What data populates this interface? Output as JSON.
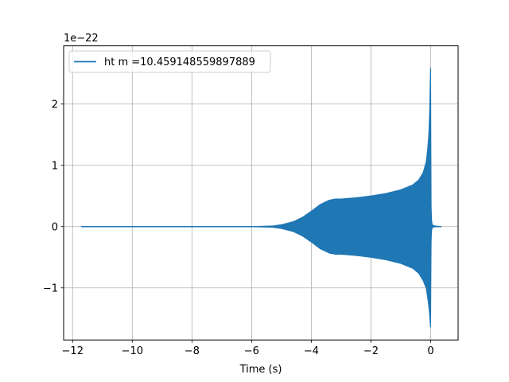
{
  "chart_data": {
    "type": "line",
    "title": "",
    "xlabel": "Time (s)",
    "ylabel": "",
    "y_scale_label": "1e−22",
    "xlim": [
      -12.3,
      0.92
    ],
    "ylim": [
      -1.85,
      2.95
    ],
    "x_ticks": [
      -12,
      -10,
      -8,
      -6,
      -4,
      -2,
      0
    ],
    "x_tick_labels": [
      "−12",
      "−10",
      "−8",
      "−6",
      "−4",
      "−2",
      "0"
    ],
    "y_ticks": [
      -1,
      0,
      1,
      2
    ],
    "y_tick_labels": [
      "−1",
      "0",
      "1",
      "2"
    ],
    "grid": true,
    "legend_position": "top-left",
    "series": [
      {
        "name": "ht m =10.459148559897889",
        "color": "#1f77b4",
        "x_start": -11.7,
        "x_end": 0.35,
        "envelope": {
          "x": [
            -11.7,
            -6.0,
            -5.3,
            -5.0,
            -4.6,
            -4.3,
            -4.0,
            -3.7,
            -3.4,
            -3.2,
            -3.0,
            -2.5,
            -2.0,
            -1.5,
            -1.0,
            -0.6,
            -0.4,
            -0.25,
            -0.15,
            -0.1,
            -0.06,
            -0.03,
            -0.01,
            0.0,
            0.01,
            0.03,
            0.05,
            0.08,
            0.15,
            0.35
          ],
          "upper": [
            0.0,
            0.0,
            0.01,
            0.03,
            0.08,
            0.15,
            0.25,
            0.36,
            0.43,
            0.45,
            0.45,
            0.47,
            0.5,
            0.54,
            0.6,
            0.68,
            0.76,
            0.88,
            1.05,
            1.25,
            1.5,
            1.9,
            2.4,
            2.66,
            0.4,
            0.1,
            0.03,
            0.02,
            0.01,
            0.0
          ],
          "lower": [
            0.0,
            0.0,
            -0.01,
            -0.03,
            -0.08,
            -0.15,
            -0.25,
            -0.36,
            -0.43,
            -0.45,
            -0.45,
            -0.47,
            -0.5,
            -0.54,
            -0.6,
            -0.68,
            -0.76,
            -0.88,
            -1.0,
            -1.15,
            -1.3,
            -1.45,
            -1.6,
            -1.65,
            -0.3,
            -0.06,
            -0.02,
            -0.01,
            0.0,
            0.0
          ]
        }
      }
    ]
  }
}
